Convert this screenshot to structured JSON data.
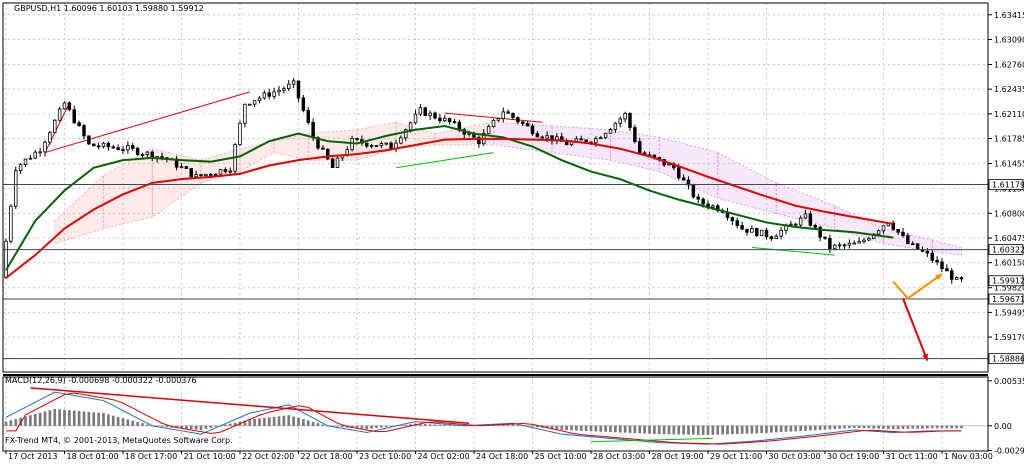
{
  "window": {
    "symbol_header": "GBPUSD,H1  1.60096 1.60103 1.59880 1.59912",
    "indicator_header": "MACD(12,26,9) -0.000698 -0.000322 -0.000376",
    "copyright": "FX-Trend MT4, © 2001-2013, MetaQuotes Software Corp."
  },
  "chart_data": [
    {
      "type": "candlestick",
      "title": "GBPUSD,H1  1.60096 1.60103 1.59880 1.59912",
      "ylim": [
        1.5871,
        1.6357
      ],
      "y_ticks": [
        "1.63415",
        "1.63090",
        "1.62760",
        "1.62435",
        "1.62110",
        "1.61785",
        "1.61455",
        "1.61130",
        "1.60800",
        "1.60475",
        "1.60150",
        "1.59820",
        "1.59495",
        "1.59170"
      ],
      "x_ticks": [
        "17 Oct 2013",
        "18 Oct 01:00",
        "18 Oct 17:00",
        "21 Oct 10:00",
        "22 Oct 02:00",
        "22 Oct 18:00",
        "23 Oct 10:00",
        "24 Oct 02:00",
        "24 Oct 18:00",
        "25 Oct 10:00",
        "28 Oct 03:00",
        "28 Oct 19:00",
        "29 Oct 11:00",
        "30 Oct 03:00",
        "30 Oct 19:00",
        "31 Oct 11:00",
        "1 Nov 03:00"
      ],
      "series": [
        {
          "name": "",
          "color": "#006400",
          "x": [
            0,
            6,
            12,
            18,
            24,
            30,
            36,
            42,
            48,
            54,
            60,
            66,
            72,
            78,
            84,
            90,
            96,
            102,
            108,
            114,
            120,
            126,
            132,
            138,
            144,
            150,
            156,
            162,
            168,
            174,
            182
          ],
          "values": [
            1.6005,
            1.607,
            1.611,
            1.614,
            1.615,
            1.6153,
            1.615,
            1.6148,
            1.6155,
            1.6175,
            1.6185,
            1.6175,
            1.6172,
            1.6182,
            1.619,
            1.6195,
            1.6185,
            1.618,
            1.6168,
            1.615,
            1.6135,
            1.6125,
            1.611,
            1.6098,
            1.6088,
            1.6078,
            1.6068,
            1.6062,
            1.6058,
            1.6055,
            1.6048
          ]
        },
        {
          "name": "",
          "color": "#e00000",
          "x": [
            0,
            6,
            12,
            18,
            24,
            30,
            36,
            42,
            48,
            54,
            60,
            66,
            72,
            78,
            84,
            90,
            96,
            102,
            108,
            114,
            120,
            126,
            132,
            138,
            144,
            150,
            156,
            162,
            168,
            174,
            182
          ],
          "values": [
            1.5995,
            1.6025,
            1.606,
            1.6085,
            1.6105,
            1.612,
            1.6125,
            1.6128,
            1.6132,
            1.6143,
            1.615,
            1.6155,
            1.6158,
            1.6163,
            1.617,
            1.6177,
            1.6178,
            1.6178,
            1.6177,
            1.6176,
            1.6172,
            1.6165,
            1.6155,
            1.6142,
            1.6128,
            1.6115,
            1.6102,
            1.609,
            1.6082,
            1.6075,
            1.6066
          ]
        }
      ],
      "price_lines": [
        1.61179,
        1.60322,
        1.59671,
        1.58886
      ],
      "price_tags": [
        "1.61179",
        "1.60322",
        "1.59912",
        "1.59671",
        "1.58886"
      ],
      "forecast_arrows": [
        {
          "color": "#ff8c00",
          "points": [
            [
              182,
              1.599
            ],
            [
              185,
              1.5968
            ],
            [
              192,
              1.6
            ]
          ]
        },
        {
          "color": "#e00000",
          "points": [
            [
              184,
              1.5968
            ],
            [
              189,
              1.5886
            ]
          ]
        }
      ]
    },
    {
      "type": "bar",
      "title": "MACD(12,26,9) -0.000698 -0.000322 -0.000376",
      "ylim": [
        -0.003,
        0.0058
      ],
      "y_ticks": [
        "0.005353",
        "0.00",
        "-0.002943"
      ]
    }
  ]
}
